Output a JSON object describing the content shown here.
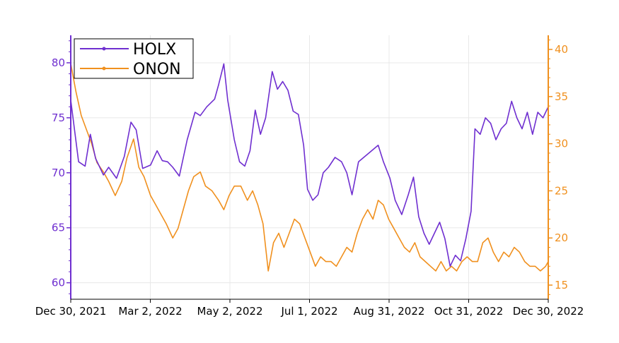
{
  "chart_data": {
    "type": "line",
    "title": "",
    "xlabel": "",
    "ylabel_left": "",
    "ylabel_right": "",
    "x_range": [
      "2021-12-30",
      "2022-12-30"
    ],
    "x_ticks": [
      "Dec 30, 2021",
      "Mar 2, 2022",
      "May 2, 2022",
      "Jul 1, 2022",
      "Aug 31, 2022",
      "Oct 31, 2022",
      "Dec 30, 2022"
    ],
    "ylim_left": [
      58.5,
      82.5
    ],
    "yticks_left": [
      60,
      65,
      70,
      75,
      80
    ],
    "ylim_right": [
      13.5,
      41.5
    ],
    "yticks_right": [
      15,
      20,
      25,
      30,
      35,
      40
    ],
    "grid": true,
    "legend_position": "top-left",
    "colors": {
      "HOLX": "#6f2fd0",
      "ONON": "#f0901e"
    },
    "series": [
      {
        "name": "HOLX",
        "axis": "left",
        "points": [
          [
            "2021-12-30",
            76.6
          ],
          [
            "2022-01-05",
            71.0
          ],
          [
            "2022-01-10",
            70.6
          ],
          [
            "2022-01-14",
            73.5
          ],
          [
            "2022-01-18",
            71.3
          ],
          [
            "2022-01-24",
            69.8
          ],
          [
            "2022-01-28",
            70.5
          ],
          [
            "2022-02-03",
            69.5
          ],
          [
            "2022-02-09",
            71.5
          ],
          [
            "2022-02-14",
            74.6
          ],
          [
            "2022-02-18",
            73.9
          ],
          [
            "2022-02-23",
            70.4
          ],
          [
            "2022-03-01",
            70.7
          ],
          [
            "2022-03-06",
            72.0
          ],
          [
            "2022-03-10",
            71.1
          ],
          [
            "2022-03-14",
            71.0
          ],
          [
            "2022-03-18",
            70.5
          ],
          [
            "2022-03-23",
            69.7
          ],
          [
            "2022-03-29",
            73.0
          ],
          [
            "2022-04-04",
            75.5
          ],
          [
            "2022-04-08",
            75.2
          ],
          [
            "2022-04-13",
            76.0
          ],
          [
            "2022-04-19",
            76.7
          ],
          [
            "2022-04-22",
            78.0
          ],
          [
            "2022-04-26",
            79.9
          ],
          [
            "2022-04-29",
            76.6
          ],
          [
            "2022-05-04",
            73.0
          ],
          [
            "2022-05-08",
            71.0
          ],
          [
            "2022-05-12",
            70.6
          ],
          [
            "2022-05-16",
            72.0
          ],
          [
            "2022-05-20",
            75.7
          ],
          [
            "2022-05-24",
            73.5
          ],
          [
            "2022-05-28",
            75.0
          ],
          [
            "2022-06-02",
            79.2
          ],
          [
            "2022-06-06",
            77.6
          ],
          [
            "2022-06-10",
            78.3
          ],
          [
            "2022-06-14",
            77.5
          ],
          [
            "2022-06-18",
            75.6
          ],
          [
            "2022-06-22",
            75.3
          ],
          [
            "2022-06-26",
            72.5
          ],
          [
            "2022-06-29",
            68.5
          ],
          [
            "2022-07-03",
            67.5
          ],
          [
            "2022-07-07",
            68.0
          ],
          [
            "2022-07-11",
            70.0
          ],
          [
            "2022-07-15",
            70.5
          ],
          [
            "2022-07-20",
            71.4
          ],
          [
            "2022-07-25",
            71.0
          ],
          [
            "2022-07-29",
            70.0
          ],
          [
            "2022-08-02",
            68.0
          ],
          [
            "2022-08-07",
            71.0
          ],
          [
            "2022-08-12",
            71.5
          ],
          [
            "2022-08-17",
            72.0
          ],
          [
            "2022-08-22",
            72.5
          ],
          [
            "2022-08-26",
            71.0
          ],
          [
            "2022-08-31",
            69.5
          ],
          [
            "2022-09-04",
            67.5
          ],
          [
            "2022-09-09",
            66.2
          ],
          [
            "2022-09-14",
            68.0
          ],
          [
            "2022-09-18",
            69.6
          ],
          [
            "2022-09-22",
            66.0
          ],
          [
            "2022-09-26",
            64.5
          ],
          [
            "2022-09-30",
            63.5
          ],
          [
            "2022-10-04",
            64.5
          ],
          [
            "2022-10-08",
            65.5
          ],
          [
            "2022-10-12",
            64.0
          ],
          [
            "2022-10-16",
            61.5
          ],
          [
            "2022-10-20",
            62.5
          ],
          [
            "2022-10-24",
            62.0
          ],
          [
            "2022-10-28",
            64.0
          ],
          [
            "2022-11-01",
            66.5
          ],
          [
            "2022-11-04",
            74.0
          ],
          [
            "2022-11-08",
            73.5
          ],
          [
            "2022-11-12",
            75.0
          ],
          [
            "2022-11-16",
            74.5
          ],
          [
            "2022-11-20",
            73.0
          ],
          [
            "2022-11-24",
            74.0
          ],
          [
            "2022-11-28",
            74.5
          ],
          [
            "2022-12-02",
            76.5
          ],
          [
            "2022-12-06",
            75.0
          ],
          [
            "2022-12-10",
            74.0
          ],
          [
            "2022-12-14",
            75.5
          ],
          [
            "2022-12-18",
            73.5
          ],
          [
            "2022-12-22",
            75.5
          ],
          [
            "2022-12-26",
            75.0
          ],
          [
            "2022-12-30",
            76.0
          ]
        ]
      },
      {
        "name": "ONON",
        "axis": "right",
        "points": [
          [
            "2021-12-30",
            38.5
          ],
          [
            "2022-01-03",
            35.5
          ],
          [
            "2022-01-07",
            33.0
          ],
          [
            "2022-01-11",
            31.5
          ],
          [
            "2022-01-15",
            30.0
          ],
          [
            "2022-01-19",
            28.0
          ],
          [
            "2022-01-24",
            27.0
          ],
          [
            "2022-01-28",
            26.0
          ],
          [
            "2022-02-02",
            24.5
          ],
          [
            "2022-02-07",
            26.0
          ],
          [
            "2022-02-11",
            28.5
          ],
          [
            "2022-02-16",
            30.5
          ],
          [
            "2022-02-20",
            27.5
          ],
          [
            "2022-02-24",
            26.5
          ],
          [
            "2022-03-01",
            24.5
          ],
          [
            "2022-03-05",
            23.5
          ],
          [
            "2022-03-09",
            22.5
          ],
          [
            "2022-03-13",
            21.5
          ],
          [
            "2022-03-18",
            20.0
          ],
          [
            "2022-03-22",
            21.0
          ],
          [
            "2022-03-26",
            23.0
          ],
          [
            "2022-03-30",
            25.0
          ],
          [
            "2022-04-03",
            26.5
          ],
          [
            "2022-04-08",
            27.0
          ],
          [
            "2022-04-12",
            25.5
          ],
          [
            "2022-04-17",
            25.0
          ],
          [
            "2022-04-22",
            24.0
          ],
          [
            "2022-04-26",
            23.0
          ],
          [
            "2022-04-30",
            24.5
          ],
          [
            "2022-05-04",
            25.5
          ],
          [
            "2022-05-09",
            25.5
          ],
          [
            "2022-05-14",
            24.0
          ],
          [
            "2022-05-18",
            25.0
          ],
          [
            "2022-05-22",
            23.5
          ],
          [
            "2022-05-26",
            21.5
          ],
          [
            "2022-05-30",
            16.5
          ],
          [
            "2022-06-03",
            19.5
          ],
          [
            "2022-06-07",
            20.5
          ],
          [
            "2022-06-11",
            19.0
          ],
          [
            "2022-06-15",
            20.5
          ],
          [
            "2022-06-19",
            22.0
          ],
          [
            "2022-06-23",
            21.5
          ],
          [
            "2022-06-27",
            20.0
          ],
          [
            "2022-07-01",
            18.5
          ],
          [
            "2022-07-05",
            17.0
          ],
          [
            "2022-07-09",
            18.0
          ],
          [
            "2022-07-13",
            17.5
          ],
          [
            "2022-07-17",
            17.5
          ],
          [
            "2022-07-21",
            17.0
          ],
          [
            "2022-07-25",
            18.0
          ],
          [
            "2022-07-29",
            19.0
          ],
          [
            "2022-08-02",
            18.5
          ],
          [
            "2022-08-06",
            20.5
          ],
          [
            "2022-08-10",
            22.0
          ],
          [
            "2022-08-14",
            23.0
          ],
          [
            "2022-08-18",
            22.0
          ],
          [
            "2022-08-22",
            24.0
          ],
          [
            "2022-08-26",
            23.5
          ],
          [
            "2022-08-30",
            22.0
          ],
          [
            "2022-09-03",
            21.0
          ],
          [
            "2022-09-07",
            20.0
          ],
          [
            "2022-09-11",
            19.0
          ],
          [
            "2022-09-15",
            18.5
          ],
          [
            "2022-09-19",
            19.5
          ],
          [
            "2022-09-23",
            18.0
          ],
          [
            "2022-09-27",
            17.5
          ],
          [
            "2022-10-01",
            17.0
          ],
          [
            "2022-10-05",
            16.5
          ],
          [
            "2022-10-09",
            17.5
          ],
          [
            "2022-10-13",
            16.5
          ],
          [
            "2022-10-17",
            17.0
          ],
          [
            "2022-10-21",
            16.5
          ],
          [
            "2022-10-25",
            17.5
          ],
          [
            "2022-10-29",
            18.0
          ],
          [
            "2022-11-02",
            17.5
          ],
          [
            "2022-11-06",
            17.5
          ],
          [
            "2022-11-10",
            19.5
          ],
          [
            "2022-11-14",
            20.0
          ],
          [
            "2022-11-18",
            18.5
          ],
          [
            "2022-11-22",
            17.5
          ],
          [
            "2022-11-26",
            18.5
          ],
          [
            "2022-11-30",
            18.0
          ],
          [
            "2022-12-04",
            19.0
          ],
          [
            "2022-12-08",
            18.5
          ],
          [
            "2022-12-12",
            17.5
          ],
          [
            "2022-12-16",
            17.0
          ],
          [
            "2022-12-20",
            17.0
          ],
          [
            "2022-12-24",
            16.5
          ],
          [
            "2022-12-28",
            17.0
          ],
          [
            "2022-12-30",
            17.5
          ]
        ]
      }
    ]
  }
}
